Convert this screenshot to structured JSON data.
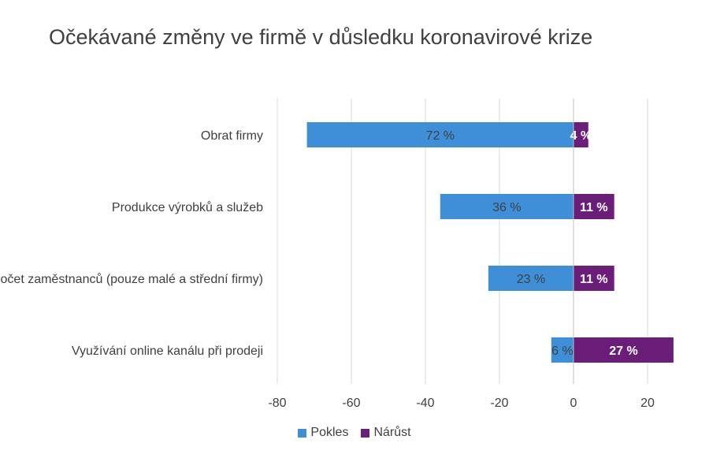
{
  "chart_data": {
    "type": "bar",
    "orientation": "horizontal",
    "title": "Očekávané změny ve firmě v důsledku koronavirové krize",
    "categories": [
      "Obrat firmy",
      "Produkce výrobků a služeb",
      "Počet zaměstnanců (pouze malé a střední firmy)",
      "Využívání online kanálu při prodeji"
    ],
    "series": [
      {
        "name": "Pokles",
        "values": [
          -72,
          -36,
          -23,
          -6
        ],
        "labels": [
          "72 %",
          "36 %",
          "23 %",
          "6 %"
        ],
        "color": "#3E8FD8"
      },
      {
        "name": "Nárůst",
        "values": [
          4,
          11,
          11,
          27
        ],
        "labels": [
          "4 %",
          "11 %",
          "11 %",
          "27 %"
        ],
        "color": "#6A1E7A"
      }
    ],
    "xlim": [
      -80,
      27
    ],
    "xticks": [
      "-80",
      "-60",
      "-40",
      "-20",
      "0",
      "20"
    ],
    "grid": true,
    "legend_position": "bottom"
  }
}
